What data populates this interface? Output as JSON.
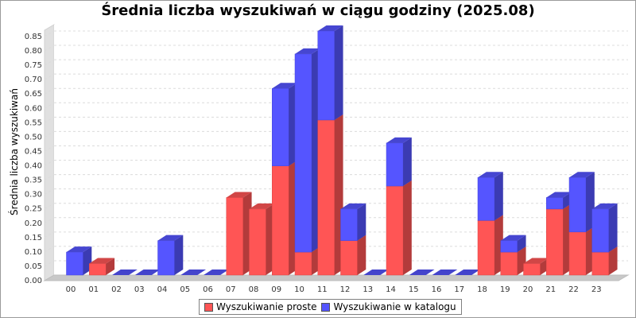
{
  "chart_data": {
    "type": "bar",
    "stacked": true,
    "style": "3d",
    "title": "Średnia liczba wyszukiwań w ciągu godziny (2025.08)",
    "xlabel": "",
    "ylabel": "Średnia liczba wyszukiwań",
    "ylim": [
      0,
      0.85
    ],
    "y_ticks": [
      "0.00",
      "0.05",
      "0.10",
      "0.15",
      "0.20",
      "0.25",
      "0.30",
      "0.35",
      "0.40",
      "0.45",
      "0.50",
      "0.55",
      "0.60",
      "0.65",
      "0.70",
      "0.75",
      "0.80",
      "0.85"
    ],
    "grid": true,
    "legend_position": "bottom",
    "categories": [
      "00",
      "01",
      "02",
      "03",
      "04",
      "05",
      "06",
      "07",
      "08",
      "09",
      "10",
      "11",
      "12",
      "13",
      "14",
      "15",
      "16",
      "17",
      "18",
      "19",
      "20",
      "21",
      "22",
      "23"
    ],
    "series": [
      {
        "name": "Wyszukiwanie proste",
        "color": "#ff5555",
        "values": [
          0,
          0.04,
          0,
          0,
          0,
          0,
          0,
          0.27,
          0.23,
          0.38,
          0.08,
          0.54,
          0.12,
          0,
          0.31,
          0,
          0,
          0,
          0.19,
          0.08,
          0.04,
          0.23,
          0.15,
          0.08
        ]
      },
      {
        "name": "Wyszukiwanie w katalogu",
        "color": "#5555ff",
        "values": [
          0.08,
          0,
          0,
          0,
          0.12,
          0,
          0,
          0,
          0,
          0.27,
          0.69,
          0.31,
          0.11,
          0,
          0.15,
          0,
          0,
          0,
          0.15,
          0.04,
          0,
          0.04,
          0.19,
          0.15
        ]
      }
    ]
  }
}
